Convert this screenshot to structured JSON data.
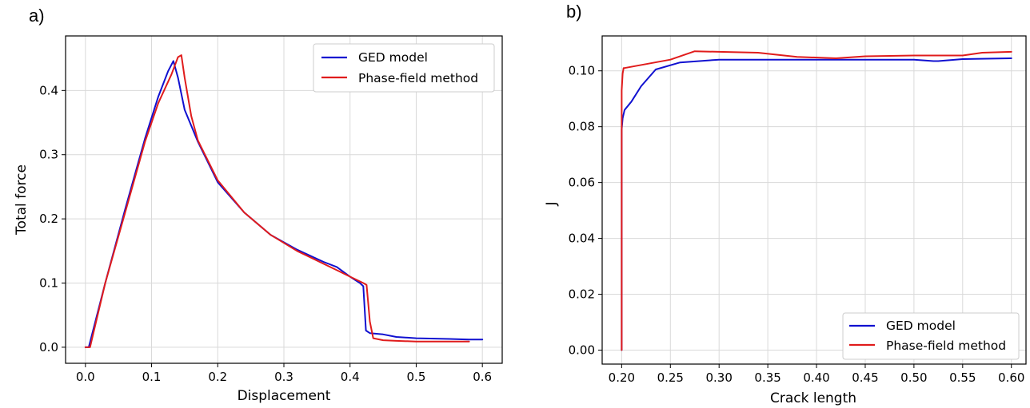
{
  "chart_data": [
    {
      "type": "line",
      "panel_label": "a)",
      "xlabel": "Displacement",
      "ylabel": "Total force",
      "xlim": [
        -0.03,
        0.63
      ],
      "ylim": [
        -0.025,
        0.485
      ],
      "grid": true,
      "legend_position": "top-right",
      "xticks": [
        0.0,
        0.1,
        0.2,
        0.3,
        0.4,
        0.5,
        0.6
      ],
      "xtick_labels": [
        "0.0",
        "0.1",
        "0.2",
        "0.3",
        "0.4",
        "0.5",
        "0.6"
      ],
      "yticks": [
        0.0,
        0.1,
        0.2,
        0.3,
        0.4
      ],
      "ytick_labels": [
        "0.0",
        "0.1",
        "0.2",
        "0.3",
        "0.4"
      ],
      "series": [
        {
          "name": "GED model",
          "color": "#1010d0",
          "x": [
            0.0,
            0.005,
            0.03,
            0.06,
            0.09,
            0.11,
            0.125,
            0.133,
            0.14,
            0.15,
            0.17,
            0.2,
            0.24,
            0.28,
            0.32,
            0.36,
            0.38,
            0.4,
            0.415,
            0.42,
            0.424,
            0.43,
            0.45,
            0.47,
            0.5,
            0.55,
            0.58,
            0.6
          ],
          "y": [
            0.0,
            0.0,
            0.1,
            0.215,
            0.325,
            0.39,
            0.43,
            0.446,
            0.42,
            0.37,
            0.32,
            0.257,
            0.21,
            0.175,
            0.152,
            0.133,
            0.125,
            0.11,
            0.1,
            0.095,
            0.026,
            0.022,
            0.02,
            0.016,
            0.014,
            0.013,
            0.012,
            0.012
          ]
        },
        {
          "name": "Phase-field method",
          "color": "#e01c1c",
          "x": [
            0.0,
            0.007,
            0.03,
            0.06,
            0.09,
            0.11,
            0.13,
            0.14,
            0.145,
            0.15,
            0.16,
            0.17,
            0.2,
            0.24,
            0.28,
            0.32,
            0.36,
            0.38,
            0.4,
            0.41,
            0.42,
            0.425,
            0.43,
            0.435,
            0.45,
            0.47,
            0.5,
            0.55,
            0.58
          ],
          "y": [
            0.0,
            0.0,
            0.1,
            0.21,
            0.32,
            0.38,
            0.425,
            0.452,
            0.455,
            0.42,
            0.36,
            0.322,
            0.26,
            0.21,
            0.175,
            0.15,
            0.13,
            0.12,
            0.11,
            0.105,
            0.1,
            0.097,
            0.04,
            0.014,
            0.011,
            0.01,
            0.009,
            0.009,
            0.009
          ]
        }
      ]
    },
    {
      "type": "line",
      "panel_label": "b)",
      "xlabel": "Crack length",
      "ylabel": "J",
      "xlim": [
        0.18,
        0.615
      ],
      "ylim": [
        -0.005,
        0.1125
      ],
      "grid": true,
      "legend_position": "bottom-right",
      "xticks": [
        0.2,
        0.25,
        0.3,
        0.35,
        0.4,
        0.45,
        0.5,
        0.55,
        0.6
      ],
      "xtick_labels": [
        "0.20",
        "0.25",
        "0.30",
        "0.35",
        "0.40",
        "0.45",
        "0.50",
        "0.55",
        "0.60"
      ],
      "yticks": [
        0.0,
        0.02,
        0.04,
        0.06,
        0.08,
        0.1
      ],
      "ytick_labels": [
        "0.00",
        "0.02",
        "0.04",
        "0.06",
        "0.08",
        "0.10"
      ],
      "series": [
        {
          "name": "GED model",
          "color": "#1010d0",
          "x": [
            0.2,
            0.2,
            0.201,
            0.203,
            0.21,
            0.22,
            0.235,
            0.26,
            0.3,
            0.35,
            0.4,
            0.45,
            0.5,
            0.52,
            0.525,
            0.55,
            0.6
          ],
          "y": [
            0.0,
            0.079,
            0.083,
            0.086,
            0.089,
            0.0945,
            0.1005,
            0.103,
            0.104,
            0.104,
            0.104,
            0.104,
            0.104,
            0.1035,
            0.1035,
            0.1042,
            0.1045
          ]
        },
        {
          "name": "Phase-field method",
          "color": "#e01c1c",
          "x": [
            0.2,
            0.2,
            0.201,
            0.202,
            0.203,
            0.25,
            0.275,
            0.3,
            0.34,
            0.38,
            0.42,
            0.45,
            0.5,
            0.55,
            0.57,
            0.6
          ],
          "y": [
            0.0,
            0.093,
            0.099,
            0.101,
            0.101,
            0.104,
            0.107,
            0.1068,
            0.1065,
            0.105,
            0.1045,
            0.1052,
            0.1055,
            0.1055,
            0.1065,
            0.1068
          ]
        }
      ]
    }
  ]
}
